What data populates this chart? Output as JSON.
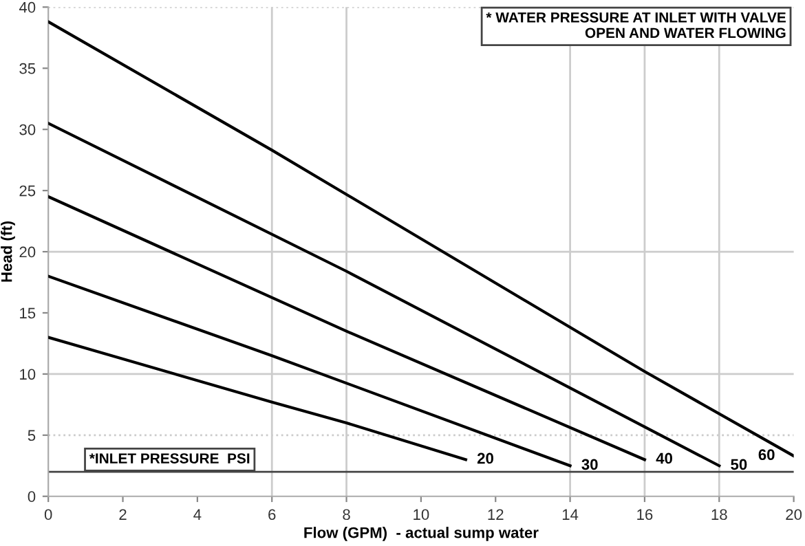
{
  "chart_data": {
    "type": "line",
    "xlabel": "Flow (GPM)  - actual sump water",
    "ylabel": "Head (ft)",
    "xlim": [
      0,
      20
    ],
    "ylim": [
      0,
      40
    ],
    "xticks": [
      0,
      2,
      4,
      6,
      8,
      10,
      12,
      14,
      16,
      18,
      20
    ],
    "yticks": [
      0,
      5,
      10,
      15,
      20,
      25,
      30,
      35,
      40
    ],
    "grid": false,
    "legend": false,
    "marker": "none",
    "line_style": "solid",
    "series": [
      {
        "name": "20",
        "color": "#000000",
        "x": [
          0,
          6,
          8,
          11.2
        ],
        "values": [
          13,
          7.7,
          6,
          3
        ]
      },
      {
        "name": "30",
        "color": "#000000",
        "x": [
          0,
          6,
          14
        ],
        "values": [
          18,
          11.5,
          2.5
        ]
      },
      {
        "name": "40",
        "color": "#000000",
        "x": [
          0,
          8,
          16
        ],
        "values": [
          24.5,
          13.5,
          3
        ]
      },
      {
        "name": "50",
        "color": "#000000",
        "x": [
          0,
          8,
          18
        ],
        "values": [
          30.5,
          18.4,
          2.5
        ]
      },
      {
        "name": "60",
        "color": "#000000",
        "x": [
          0,
          6,
          16,
          20
        ],
        "values": [
          38.8,
          28.3,
          10.2,
          3.3
        ]
      }
    ],
    "ref_lines": [
      {
        "axis": "x",
        "value": 6,
        "color": "#cccccc"
      },
      {
        "axis": "x",
        "value": 8,
        "color": "#cccccc"
      },
      {
        "axis": "x",
        "value": 14,
        "color": "#cccccc"
      },
      {
        "axis": "x",
        "value": 16,
        "color": "#cccccc"
      },
      {
        "axis": "x",
        "value": 18,
        "color": "#cccccc"
      },
      {
        "axis": "y",
        "value": 10,
        "color": "#cccccc"
      },
      {
        "axis": "y",
        "value": 20,
        "color": "#cccccc"
      },
      {
        "axis": "y",
        "value": 5,
        "color": "#cccccc",
        "line_style": "dotted"
      },
      {
        "axis": "y",
        "value": 40,
        "color": "#cccccc",
        "line_style": "dotted"
      },
      {
        "axis": "y",
        "value": 2,
        "color": "#444444"
      }
    ],
    "annotations": [
      "* WATER PRESSURE AT INLET WITH VALVE\nOPEN AND WATER FLOWING",
      "*INLET PRESSURE  PSI"
    ]
  }
}
